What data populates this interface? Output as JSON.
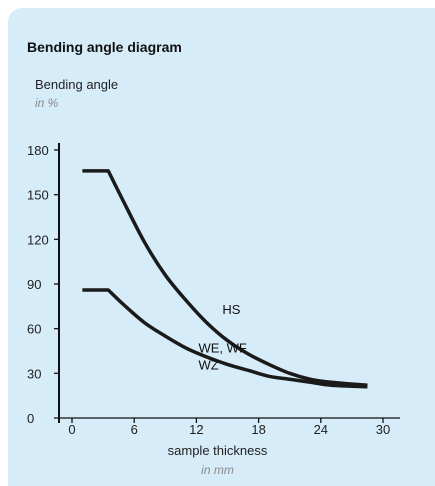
{
  "chart_data": {
    "type": "line",
    "title": "Bending angle diagram",
    "ylabel": "Bending angle",
    "yunit": "in %",
    "xlabel": "sample thickness",
    "xunit": "in mm",
    "xlim": [
      0,
      30
    ],
    "ylim": [
      0,
      180
    ],
    "xticks": [
      0,
      6,
      12,
      18,
      24,
      30
    ],
    "yticks": [
      0,
      30,
      60,
      90,
      120,
      150,
      180
    ],
    "grid": false,
    "series": [
      {
        "name": "HS",
        "label_lines": [
          "HS"
        ],
        "label_at": [
          14.5,
          70
        ],
        "x": [
          1,
          3.5,
          5,
          7,
          9,
          11,
          13,
          15,
          17,
          19,
          21,
          23,
          25,
          28.5
        ],
        "y": [
          166,
          166,
          145,
          118,
          96,
          79,
          64,
          52,
          43,
          36,
          30,
          26,
          24,
          22
        ]
      },
      {
        "name": "WE, WF WZ",
        "label_lines": [
          "WE, WF",
          "WZ"
        ],
        "label_at": [
          12.2,
          44
        ],
        "x": [
          1,
          3.5,
          5,
          7,
          9,
          11,
          13,
          15,
          17,
          19,
          21,
          23,
          25,
          28.5
        ],
        "y": [
          86,
          86,
          76,
          64,
          55,
          47,
          41,
          36,
          32,
          28,
          26,
          24,
          22,
          21
        ]
      }
    ]
  }
}
